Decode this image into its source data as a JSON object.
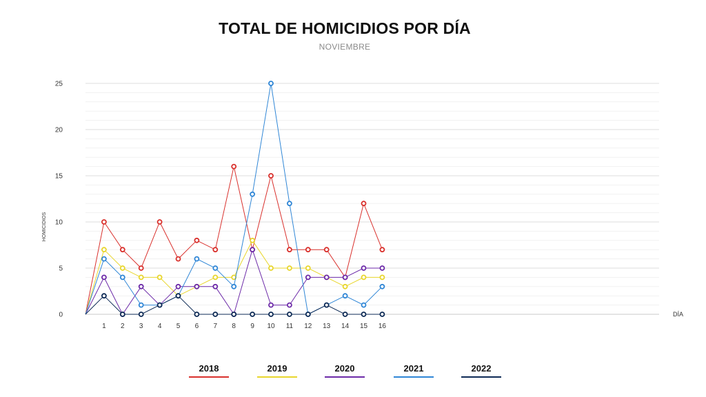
{
  "chart_data": {
    "type": "line",
    "title": "TOTAL DE HOMICIDIOS POR DÍA",
    "subtitle": "NOVIEMBRE",
    "xlabel": "DÍA",
    "ylabel": "HOMICIDIOS",
    "x": [
      0,
      1,
      2,
      3,
      4,
      5,
      6,
      7,
      8,
      9,
      10,
      11,
      12,
      13,
      14,
      15,
      16
    ],
    "xticks": [
      1,
      2,
      3,
      4,
      5,
      6,
      7,
      8,
      9,
      10,
      11,
      12,
      13,
      14,
      15,
      16
    ],
    "yticks": [
      0,
      5,
      10,
      15,
      20,
      25
    ],
    "ylim": [
      0,
      25
    ],
    "grid": true,
    "legend_position": "bottom",
    "series": [
      {
        "name": "2018",
        "color": "#d9302c",
        "values": [
          0,
          10,
          7,
          5,
          10,
          6,
          8,
          7,
          16,
          7,
          15,
          7,
          7,
          7,
          4,
          12,
          7
        ]
      },
      {
        "name": "2019",
        "color": "#e8d62c",
        "values": [
          0,
          7,
          5,
          4,
          4,
          2,
          3,
          4,
          4,
          8,
          5,
          5,
          5,
          4,
          3,
          4,
          4
        ]
      },
      {
        "name": "2020",
        "color": "#6c2aa8",
        "values": [
          0,
          4,
          0,
          3,
          1,
          3,
          3,
          3,
          0,
          7,
          1,
          1,
          4,
          4,
          4,
          5,
          5
        ]
      },
      {
        "name": "2021",
        "color": "#2f86d6",
        "values": [
          0,
          6,
          4,
          1,
          1,
          2,
          6,
          5,
          3,
          13,
          25,
          12,
          0,
          1,
          2,
          1,
          3
        ]
      },
      {
        "name": "2022",
        "color": "#0d2a55",
        "values": [
          0,
          2,
          0,
          0,
          1,
          2,
          0,
          0,
          0,
          0,
          0,
          0,
          0,
          1,
          0,
          0,
          0
        ]
      }
    ]
  }
}
